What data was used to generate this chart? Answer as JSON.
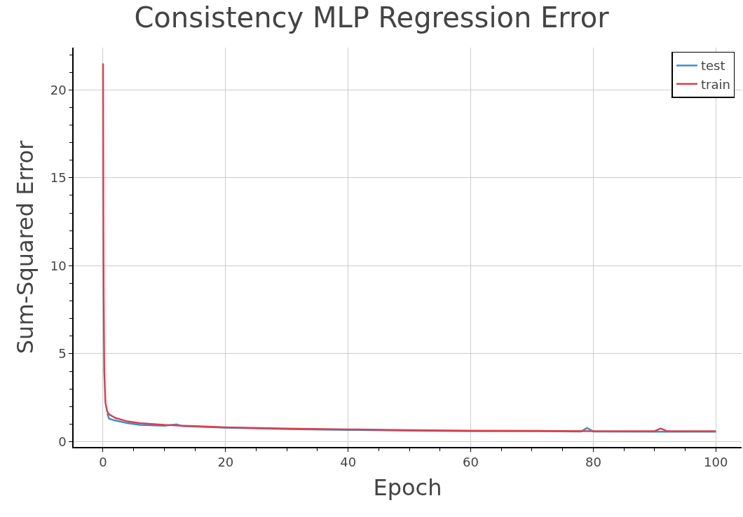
{
  "chart_data": {
    "type": "line",
    "title": "Consistency MLP Regression Error",
    "xlabel": "Epoch",
    "ylabel": "Sum-Squared Error",
    "xlim": [
      -4.8,
      104.2
    ],
    "xticks": [
      0,
      20,
      40,
      60,
      80,
      100
    ],
    "ylim": [
      -0.3,
      22.4
    ],
    "yticks": [
      0,
      5,
      10,
      15,
      20
    ],
    "grid": true,
    "legend": "top right",
    "series": [
      {
        "name": "test",
        "color": "#3a8fd0",
        "x": [
          0.7,
          1,
          2,
          4,
          6,
          10,
          12,
          13,
          20,
          30,
          40,
          50,
          60,
          70,
          78,
          79,
          80,
          90,
          100
        ],
        "values": [
          1.6,
          1.3,
          1.2,
          1.05,
          0.95,
          0.9,
          0.98,
          0.88,
          0.8,
          0.72,
          0.67,
          0.63,
          0.6,
          0.6,
          0.58,
          0.78,
          0.58,
          0.57,
          0.57
        ]
      },
      {
        "name": "train",
        "color": "#d9404f",
        "x": [
          0,
          0.05,
          0.1,
          0.2,
          0.4,
          0.7,
          1,
          2,
          4,
          6,
          10,
          15,
          20,
          30,
          40,
          50,
          60,
          70,
          80,
          90,
          91,
          92,
          100
        ],
        "values": [
          21.5,
          13,
          8.5,
          4,
          2.2,
          1.7,
          1.55,
          1.35,
          1.15,
          1.05,
          0.95,
          0.88,
          0.82,
          0.75,
          0.7,
          0.66,
          0.63,
          0.62,
          0.6,
          0.6,
          0.75,
          0.6,
          0.6
        ]
      }
    ]
  }
}
